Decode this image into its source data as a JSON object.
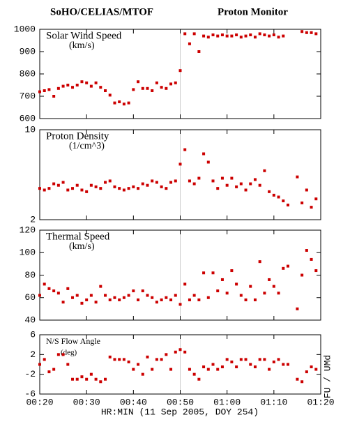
{
  "header": {
    "left": "SoHO/CELIAS/MTOF",
    "right": "Proton Monitor"
  },
  "x_axis": {
    "label": "HR:MIN (11 Sep 2005, DOY 254)",
    "xlim": [
      20,
      80
    ],
    "xticks": [
      {
        "value": 20,
        "label": "00:20"
      },
      {
        "value": 30,
        "label": "00:30"
      },
      {
        "value": 40,
        "label": "00:40"
      },
      {
        "value": 50,
        "label": "00:50"
      },
      {
        "value": 60,
        "label": "01:00"
      },
      {
        "value": 70,
        "label": "01:10"
      },
      {
        "value": 80,
        "label": "01:20"
      }
    ],
    "marker_line": 50
  },
  "credit": "FU / UMd",
  "chart_data": [
    {
      "type": "scatter",
      "title": "Solar Wind Speed",
      "units": "(km/s)",
      "color": "#cc0000",
      "ylim": [
        600,
        1000
      ],
      "yticks": [
        600,
        700,
        800,
        900,
        1000
      ],
      "x": [
        20,
        21,
        22,
        23,
        24,
        25,
        26,
        27,
        28,
        29,
        30,
        31,
        32,
        33,
        34,
        35,
        36,
        37,
        38,
        39,
        40,
        41,
        42,
        43,
        44,
        45,
        46,
        47,
        48,
        49,
        50,
        51,
        52,
        53,
        54,
        55,
        56,
        57,
        58,
        59,
        60,
        61,
        62,
        63,
        64,
        65,
        66,
        67,
        68,
        69,
        70,
        71,
        72,
        73,
        74,
        75,
        76,
        77,
        78,
        79
      ],
      "values": [
        720,
        725,
        730,
        700,
        735,
        745,
        750,
        740,
        750,
        765,
        760,
        745,
        760,
        740,
        725,
        705,
        670,
        675,
        665,
        670,
        730,
        765,
        735,
        735,
        725,
        760,
        740,
        735,
        755,
        760,
        815,
        980,
        935,
        980,
        900,
        970,
        965,
        975,
        970,
        975,
        970,
        970,
        975,
        965,
        970,
        975,
        965,
        980,
        975,
        970,
        975,
        965,
        970,
        null,
        null,
        null,
        990,
        985,
        985,
        980
      ]
    },
    {
      "type": "scatter",
      "title": "Proton Density",
      "units": "(1/cm^3)",
      "color": "#cc0000",
      "log_scale": true,
      "ylim": [
        2,
        10
      ],
      "yticks": [
        2,
        10
      ],
      "x": [
        20,
        21,
        22,
        23,
        24,
        25,
        26,
        27,
        28,
        29,
        30,
        31,
        32,
        33,
        34,
        35,
        36,
        37,
        38,
        39,
        40,
        41,
        42,
        43,
        44,
        45,
        46,
        47,
        48,
        49,
        50,
        51,
        52,
        53,
        54,
        55,
        56,
        57,
        58,
        59,
        60,
        61,
        62,
        63,
        64,
        65,
        66,
        67,
        68,
        69,
        70,
        71,
        72,
        73,
        74,
        75,
        76,
        77,
        78,
        79
      ],
      "values": [
        3.5,
        3.4,
        3.5,
        3.8,
        3.7,
        3.9,
        3.4,
        3.5,
        3.7,
        3.4,
        3.3,
        3.7,
        3.6,
        3.5,
        3.9,
        4.0,
        3.6,
        3.5,
        3.4,
        3.5,
        3.6,
        3.5,
        3.8,
        3.7,
        4.0,
        3.9,
        3.6,
        3.5,
        3.9,
        4.0,
        5.4,
        7.0,
        4.0,
        3.8,
        4.2,
        6.5,
        5.6,
        4.0,
        3.5,
        4.2,
        3.7,
        4.2,
        3.6,
        3.8,
        3.4,
        3.8,
        4.1,
        3.7,
        4.8,
        3.3,
        3.1,
        3.0,
        2.8,
        2.6,
        null,
        4.3,
        2.7,
        3.4,
        2.5,
        2.9
      ]
    },
    {
      "type": "scatter",
      "title": "Thermal Speed",
      "units": "(km/s)",
      "color": "#cc0000",
      "ylim": [
        40,
        120
      ],
      "yticks": [
        40,
        60,
        80,
        100,
        120
      ],
      "x": [
        20,
        21,
        22,
        23,
        24,
        25,
        26,
        27,
        28,
        29,
        30,
        31,
        32,
        33,
        34,
        35,
        36,
        37,
        38,
        39,
        40,
        41,
        42,
        43,
        44,
        45,
        46,
        47,
        48,
        49,
        50,
        51,
        52,
        53,
        54,
        55,
        56,
        57,
        58,
        59,
        60,
        61,
        62,
        63,
        64,
        65,
        66,
        67,
        68,
        69,
        70,
        71,
        72,
        73,
        74,
        75,
        76,
        77,
        78,
        79
      ],
      "values": [
        62,
        72,
        68,
        66,
        64,
        56,
        68,
        60,
        62,
        55,
        58,
        62,
        56,
        70,
        62,
        58,
        60,
        58,
        60,
        62,
        66,
        58,
        66,
        62,
        60,
        56,
        58,
        60,
        58,
        62,
        54,
        72,
        58,
        62,
        58,
        82,
        60,
        82,
        66,
        76,
        64,
        84,
        72,
        62,
        58,
        70,
        58,
        92,
        64,
        76,
        70,
        64,
        86,
        88,
        null,
        50,
        80,
        102,
        94,
        84
      ]
    },
    {
      "type": "scatter",
      "title": "N/S Flow Angle",
      "units": "(deg)",
      "color": "#cc0000",
      "ylim": [
        -6,
        6
      ],
      "yticks": [
        -6,
        -2,
        2,
        6
      ],
      "x": [
        20,
        21,
        22,
        23,
        24,
        25,
        26,
        27,
        28,
        29,
        30,
        31,
        32,
        33,
        34,
        35,
        36,
        37,
        38,
        39,
        40,
        41,
        42,
        43,
        44,
        45,
        46,
        47,
        48,
        49,
        50,
        51,
        52,
        53,
        54,
        55,
        56,
        57,
        58,
        59,
        60,
        61,
        62,
        63,
        64,
        65,
        66,
        67,
        68,
        69,
        70,
        71,
        72,
        73,
        74,
        75,
        76,
        77,
        78,
        79
      ],
      "values": [
        0,
        1,
        -1.5,
        -1,
        2,
        2,
        0,
        -3,
        -3,
        -2.5,
        -3,
        -2,
        -3,
        -3.5,
        -3,
        1.5,
        1,
        1,
        1,
        0.5,
        -1,
        0,
        -2,
        1.5,
        -1,
        1,
        1,
        2,
        -1,
        2.5,
        3,
        2.5,
        -1,
        -2,
        -3,
        -0.5,
        -1,
        0,
        -1,
        -0.5,
        1,
        0.5,
        -0.5,
        1,
        1,
        0,
        -0.5,
        1,
        1,
        -1,
        0.5,
        1,
        0,
        0,
        null,
        -3,
        -3.5,
        -1.5,
        -0.5,
        -1
      ]
    }
  ]
}
